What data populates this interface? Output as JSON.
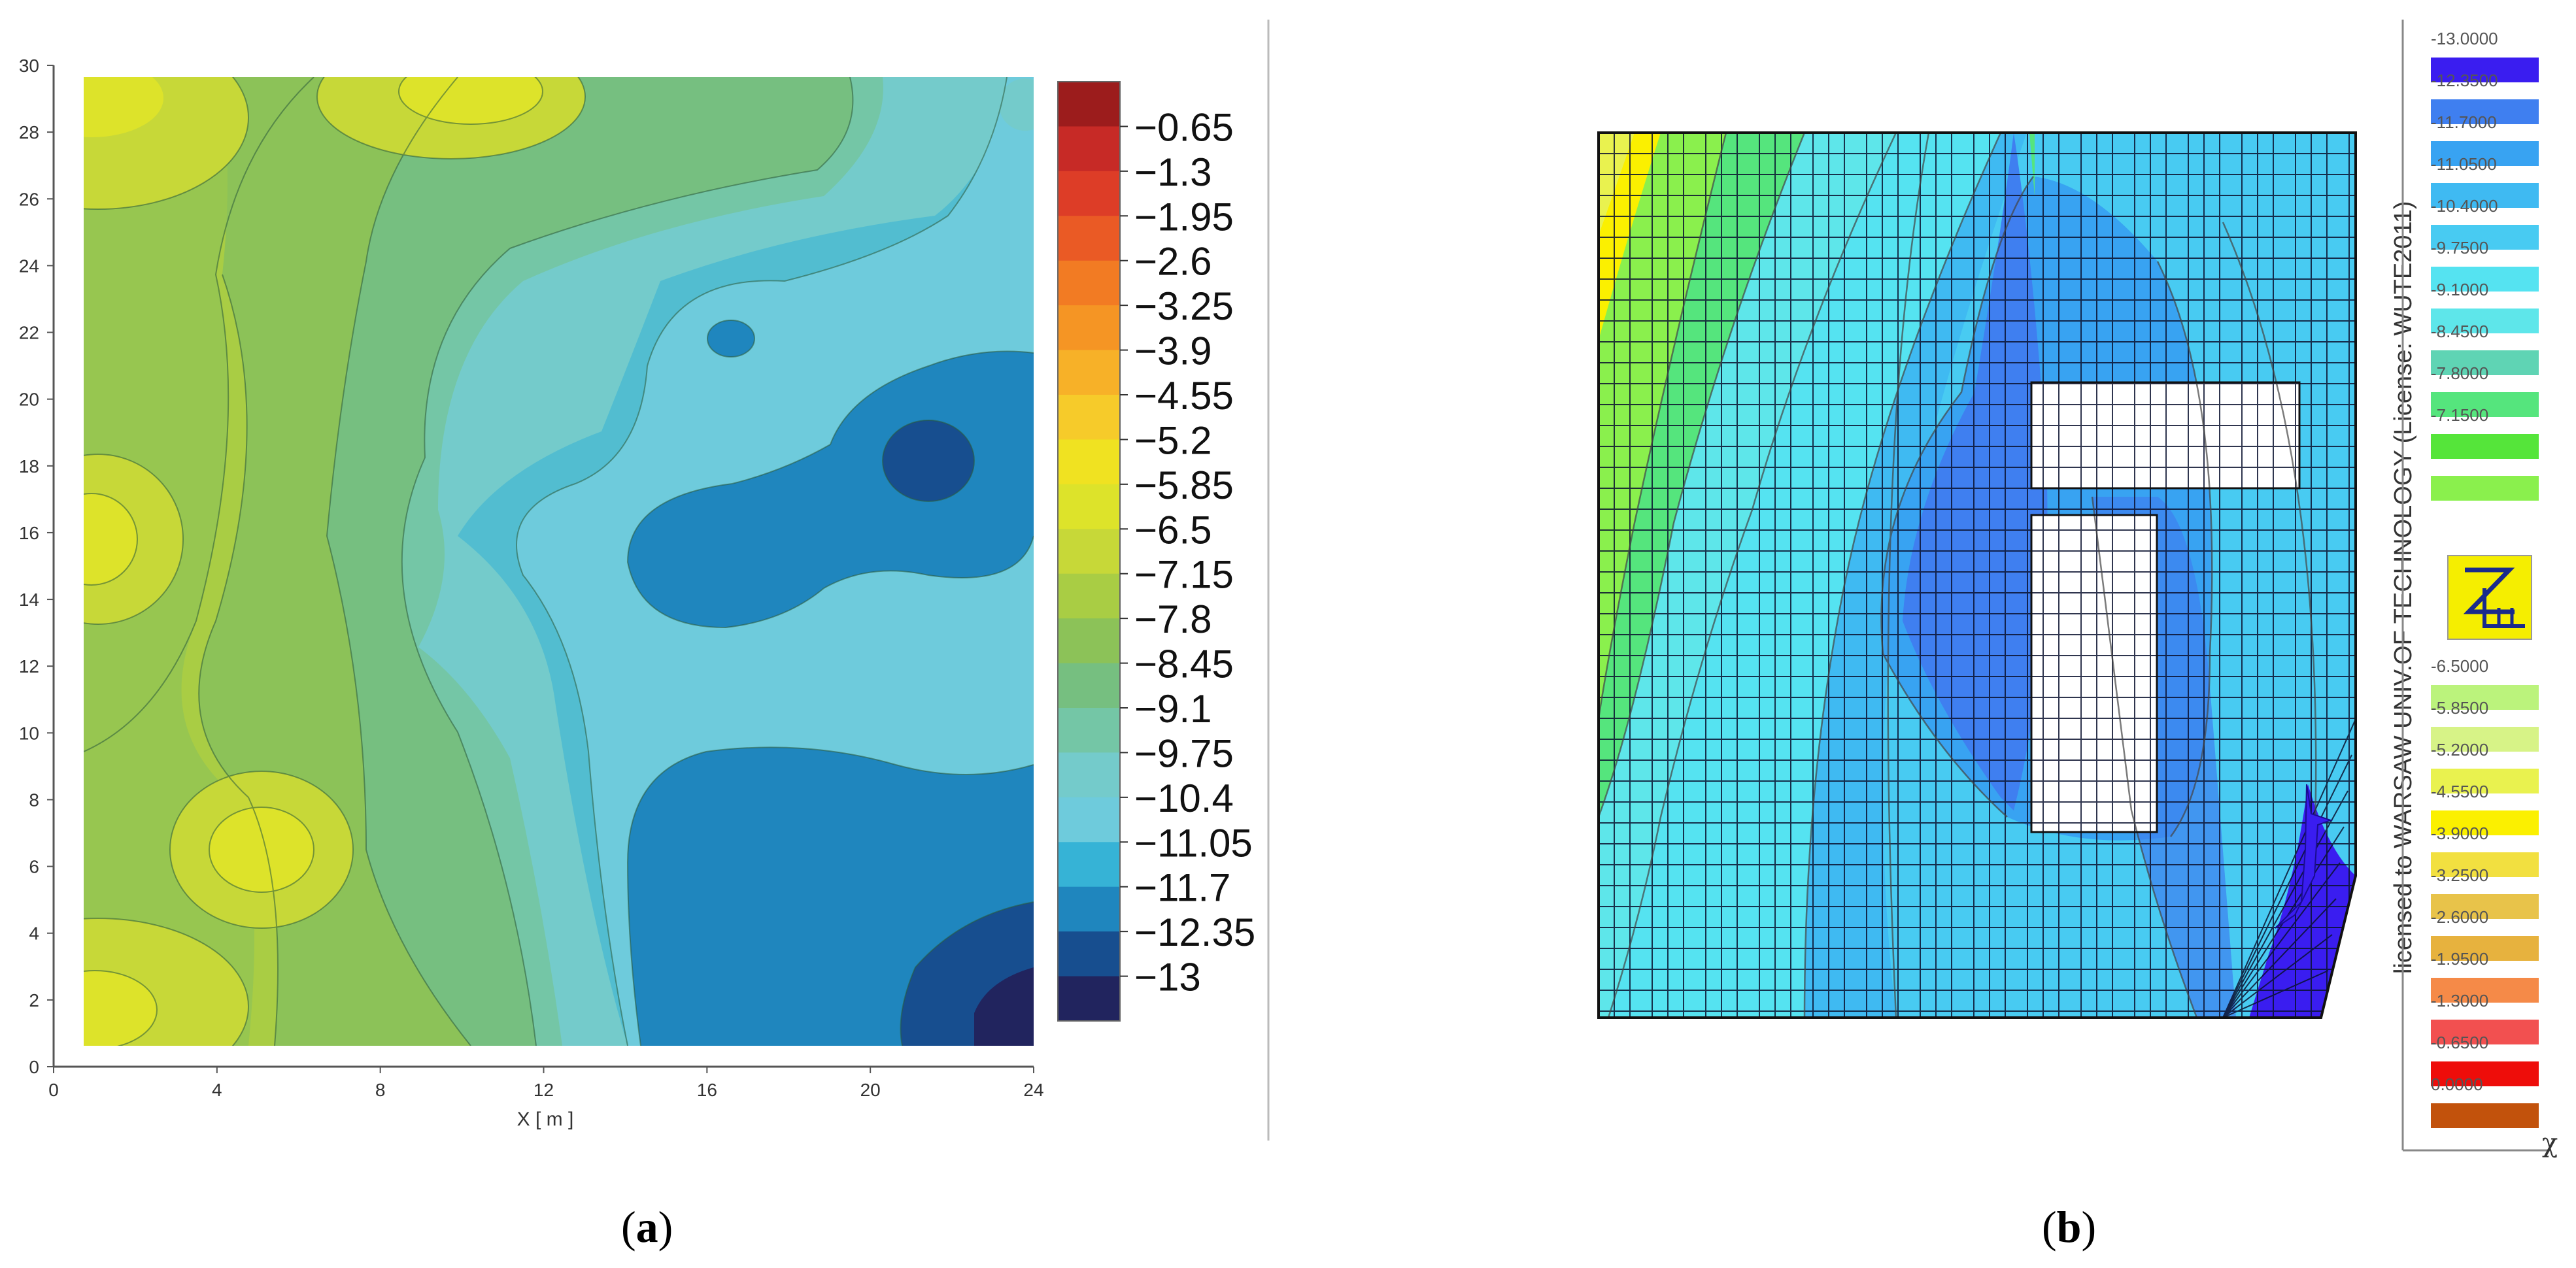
{
  "chart_data": [
    {
      "type": "heatmap",
      "panel": "(a)",
      "xlabel": "X [ m ]",
      "ylabel": "",
      "xlim": [
        0,
        24
      ],
      "ylim": [
        0,
        30
      ],
      "x_ticks": [
        "0",
        "4",
        "8",
        "12",
        "16",
        "20",
        "24"
      ],
      "y_ticks": [
        "0",
        "2",
        "4",
        "6",
        "8",
        "10",
        "12",
        "14",
        "16",
        "18",
        "20",
        "22",
        "24",
        "26",
        "28",
        "30"
      ],
      "colorbar": {
        "labels": [
          "−0.65",
          "−1.3",
          "−1.95",
          "−2.6",
          "−3.25",
          "−3.9",
          "−4.55",
          "−5.2",
          "−5.85",
          "−6.5",
          "−7.15",
          "−7.8",
          "−8.45",
          "−9.1",
          "−9.75",
          "−10.4",
          "−11.05",
          "−11.7",
          "−12.35",
          "−13"
        ],
        "colors": [
          "#9c1c1c",
          "#c72a26",
          "#dd3d27",
          "#ea5a25",
          "#f27b23",
          "#f59524",
          "#f7b128",
          "#f6cb2a",
          "#f0e221",
          "#dde32a",
          "#c7d838",
          "#a9cd44",
          "#8cc258",
          "#76bf80",
          "#74c6a6",
          "#74cbcb",
          "#6ecbdc",
          "#36b3d6",
          "#1f86be",
          "#174e8f",
          "#21245e"
        ]
      },
      "key_features": [
        {
          "label": "maximum",
          "x": 10.5,
          "y": 29,
          "value": -5.2
        },
        {
          "label": "maximum",
          "x": 1.5,
          "y": 28.5,
          "value": -5.85
        },
        {
          "label": "maximum",
          "x": 1.2,
          "y": 15.5,
          "value": -6.5
        },
        {
          "label": "maximum",
          "x": 5.0,
          "y": 6.5,
          "value": -6.5
        },
        {
          "label": "maximum",
          "x": 1.5,
          "y": 1.8,
          "value": -6.5
        },
        {
          "label": "minimum",
          "x": 20.5,
          "y": 18.0,
          "value": -12.35
        },
        {
          "label": "minimum",
          "x": 23.0,
          "y": 1.5,
          "value": -13
        }
      ]
    },
    {
      "type": "heatmap",
      "panel": "(b)",
      "xlabel": "",
      "ylabel": "",
      "license_text": "licensed to WARSAW UNIV.OF TECHNOLOGY (License: WUTE2011)",
      "legend_labels_top": [
        "-13.0000",
        "-12.3500",
        "-11.7000",
        "-11.0500",
        "-10.4000",
        "-9.7500",
        "-9.1000",
        "-8.4500",
        "-7.8000",
        "-7.1500"
      ],
      "legend_labels_bottom": [
        "-6.5000",
        "-5.8500",
        "-5.2000",
        "-4.5500",
        "-3.9000",
        "-3.2500",
        "-2.6000",
        "-1.9500",
        "-1.3000",
        "-0.6500",
        "0.0000"
      ],
      "legend_colors_top": [
        "#3a1df0",
        "#3f7ff0",
        "#38a3f2",
        "#3fbaf2",
        "#48cbf2",
        "#55e3f1",
        "#5ee6ea",
        "#5fd4b4",
        "#55e57d",
        "#55e53a",
        "#8af04d"
      ],
      "legend_colors_bottom": [
        "#bbf37c",
        "#d7f387",
        "#e9f24f",
        "#fbf000",
        "#f2e040",
        "#e8c34a",
        "#e7b23e",
        "#f58a48",
        "#f25050",
        "#ee0d0a",
        "#c2520c"
      ],
      "axis_glyph": "χ"
    }
  ],
  "captions": {
    "a": "a",
    "b": "b"
  }
}
